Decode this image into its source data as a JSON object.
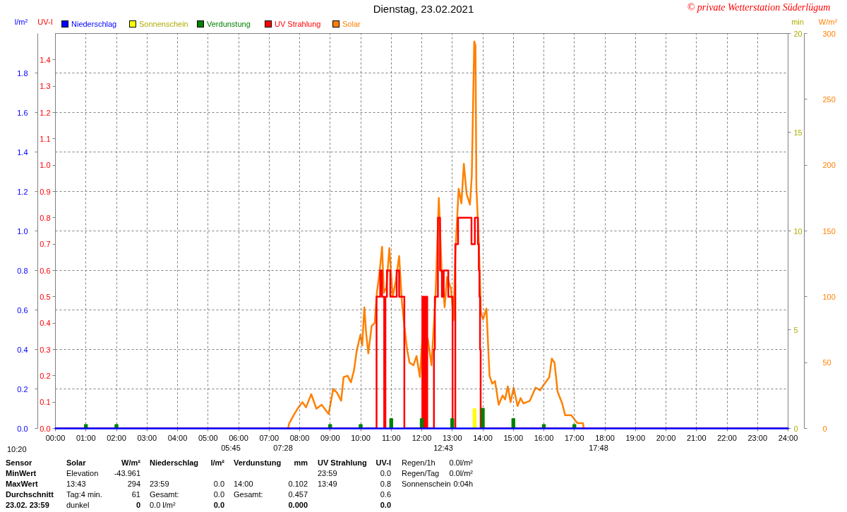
{
  "chart_data": [
    {
      "type": "line",
      "title": "Dienstag, 23.02.2021",
      "ylabel": "l/m²",
      "y2label": "UV-I",
      "xlim": [
        0,
        24
      ],
      "xticks": [
        {
          "value": 0,
          "label": "00:00"
        },
        {
          "value": 1,
          "label": "01:00"
        },
        {
          "value": 2,
          "label": "02:00"
        },
        {
          "value": 3,
          "label": "03:00"
        },
        {
          "value": 4,
          "label": "04:00"
        },
        {
          "value": 5,
          "label": "05:00"
        },
        {
          "value": 6,
          "label": "06:00"
        },
        {
          "value": 7,
          "label": "07:00"
        },
        {
          "value": 8,
          "label": "08:00"
        },
        {
          "value": 9,
          "label": "09:00"
        },
        {
          "value": 10,
          "label": "10:00"
        },
        {
          "value": 11,
          "label": "11:00"
        },
        {
          "value": 12,
          "label": "12:00"
        },
        {
          "value": 13,
          "label": "13:00"
        },
        {
          "value": 14,
          "label": "14:00"
        },
        {
          "value": 15,
          "label": "15:00"
        },
        {
          "value": 16,
          "label": "16:00"
        },
        {
          "value": 17,
          "label": "17:00"
        },
        {
          "value": 18,
          "label": "18:00"
        },
        {
          "value": 19,
          "label": "19:00"
        },
        {
          "value": 20,
          "label": "20:00"
        },
        {
          "value": 21,
          "label": "21:00"
        },
        {
          "value": 22,
          "label": "22:00"
        },
        {
          "value": 23,
          "label": "23:00"
        },
        {
          "value": 24,
          "label": "24:00"
        }
      ],
      "ylim": [
        0,
        2
      ],
      "yticks": [
        {
          "value": 0,
          "label": "0.0"
        },
        0.2,
        0.4,
        0.6,
        0.8,
        {
          "value": 1,
          "label": "1.0"
        },
        1.2,
        1.4,
        1.6,
        1.8
      ],
      "y2lim": [
        0,
        1.5
      ],
      "y2ticks": [
        {
          "value": 0,
          "label": "0.0"
        },
        0.1,
        0.2,
        0.3,
        0.4,
        0.5,
        0.6,
        0.7,
        0.8,
        0.9,
        {
          "value": 1,
          "label": "1.0"
        },
        1.1,
        1.2,
        1.3,
        1.4
      ],
      "grid": true,
      "legend": "top left",
      "series": [
        {
          "name": "Niederschlag",
          "color": "#0000ff",
          "x": [
            0,
            1,
            2,
            3,
            4,
            5,
            6,
            7,
            8,
            9,
            10,
            11,
            12,
            13,
            14,
            15,
            16,
            17,
            18,
            19,
            20,
            21,
            22,
            23,
            24
          ],
          "values": [
            0,
            0,
            0,
            0,
            0,
            0,
            0,
            0,
            0,
            0,
            0,
            0,
            0,
            0,
            0,
            0,
            0,
            0,
            0,
            0,
            0,
            0,
            0,
            0,
            0
          ]
        },
        {
          "name": "Verdunstung",
          "type": "bar",
          "color": "#008000",
          "x": [
            1,
            2,
            9,
            10,
            11,
            12,
            13,
            14,
            15,
            16,
            17
          ],
          "values": [
            0.02,
            0.02,
            0.02,
            0.02,
            0.05,
            0.05,
            0.05,
            0.102,
            0.05,
            0.02,
            0.02
          ]
        },
        {
          "name": "UV Strahlung",
          "type": "step",
          "color": "#ff0000",
          "axis": "y2",
          "x": [
            0,
            10.52,
            10.64,
            10.7,
            10.77,
            10.81,
            10.86,
            10.97,
            11.18,
            11.26,
            11.43,
            12.02,
            12.05,
            12.08,
            12.11,
            12.14,
            12.18,
            12.4,
            12.43,
            12.53,
            12.6,
            12.66,
            12.72,
            12.87,
            13.01,
            13.1,
            13.19,
            13.63,
            13.74,
            13.84,
            13.87,
            13.89,
            13.91,
            13.93,
            24
          ],
          "values": [
            0,
            0.5,
            0.6,
            0.5,
            0,
            0.5,
            0.6,
            0.5,
            0.6,
            0.5,
            0,
            0.5,
            0,
            0.5,
            0,
            0.5,
            0,
            0.3,
            0.5,
            0.8,
            0.6,
            0.5,
            0.6,
            0.5,
            0,
            0.7,
            0.8,
            0.7,
            0.8,
            0.7,
            0.6,
            0.5,
            0.3,
            0,
            0
          ]
        }
      ],
      "annotations": [
        "© private Wetterstation Süderlügum",
        "10:20",
        {
          "text": "05:45",
          "x": 5.75,
          "y": 0
        },
        {
          "text": "07:28",
          "x": 7.4667,
          "y": 0
        },
        {
          "text": "12:43",
          "x": 12.7167,
          "y": 0
        },
        {
          "text": "17:48",
          "x": 17.8,
          "y": 0
        },
        "Sensor",
        "Solar",
        "W/m²",
        "Niederschlag",
        "l/m²",
        "Verdunstung",
        "mm",
        "UV Strahlung",
        "UV-I",
        "Regen/1h",
        "0.0l/m²",
        "MinWert",
        "Elevation",
        "-43.961",
        "23:59",
        "0.0",
        "Regen/Tag",
        "0.0l/m²",
        "MaxWert",
        "13:43",
        "294",
        "23:59",
        "0.0",
        "14:00",
        "0.102",
        "13:49",
        "0.8",
        "Sonnenschein",
        "0:04h",
        "Durchschnitt",
        "Tag:4 min.",
        "61",
        "Gesamt:",
        "0.0",
        "Gesamt:",
        "0.457",
        "0.6",
        "23.02. 23:59",
        "dunkel",
        "0",
        "0.0 l/m²",
        "0.0",
        "0.000",
        "0.0"
      ]
    },
    {
      "type": "line",
      "ylabel": "min",
      "y2label": "W/m²",
      "xlim": [
        0,
        24
      ],
      "tick_labels": "y",
      "ylim": [
        0,
        20
      ],
      "yticks": [
        0,
        5,
        10,
        15,
        20
      ],
      "y2lim": [
        0,
        300
      ],
      "y2ticks": [
        0,
        50,
        100,
        150,
        200,
        250,
        300
      ],
      "legend": "top left",
      "series": [
        {
          "name": "Sonnenschein",
          "type": "bar",
          "color": "#ffff00",
          "x": [
            13.73
          ],
          "values": [
            1
          ]
        },
        {
          "name": "Solar",
          "color": "#ff8000",
          "axis": "y2",
          "x": [
            7.62,
            7.66,
            7.83,
            7.96,
            8.09,
            8.21,
            8.38,
            8.55,
            8.72,
            8.95,
            9.1,
            9.23,
            9.36,
            9.44,
            9.57,
            9.68,
            9.78,
            9.87,
            9.99,
            10.05,
            10.12,
            10.18,
            10.25,
            10.36,
            10.46,
            10.53,
            10.62,
            10.7,
            10.76,
            10.84,
            10.94,
            11.05,
            11.15,
            11.26,
            11.35,
            11.43,
            11.52,
            11.6,
            11.73,
            11.83,
            11.94,
            12.03,
            12.11,
            12.2,
            12.32,
            12.45,
            12.56,
            12.65,
            12.75,
            12.83,
            12.96,
            13.04,
            13.1,
            13.21,
            13.3,
            13.38,
            13.47,
            13.58,
            13.64,
            13.72,
            13.76,
            13.79,
            13.87,
            13.94,
            14.01,
            14.12,
            14.22,
            14.31,
            14.4,
            14.52,
            14.65,
            14.73,
            14.82,
            14.91,
            15.01,
            15.14,
            15.24,
            15.33,
            15.54,
            15.73,
            15.88,
            15.99,
            16.09,
            16.18,
            16.26,
            16.35,
            16.45,
            16.6,
            16.7,
            16.9,
            17.03,
            17.11,
            17.28,
            17.31
          ],
          "values": [
            0,
            4,
            11,
            16,
            20,
            16,
            26,
            15,
            18,
            11,
            30,
            27,
            21,
            39,
            40,
            35,
            44,
            59,
            71,
            63,
            92,
            72,
            57,
            78,
            80,
            103,
            119,
            138,
            103,
            107,
            137,
            100,
            112,
            131,
            96,
            78,
            60,
            50,
            48,
            55,
            39,
            72,
            50,
            68,
            48,
            100,
            175,
            121,
            92,
            115,
            106,
            82,
            133,
            182,
            171,
            201,
            178,
            170,
            192,
            294,
            291,
            184,
            141,
            88,
            83,
            91,
            40,
            34,
            36,
            18,
            25,
            22,
            32,
            20,
            31,
            17,
            23,
            19,
            21,
            31,
            29,
            33,
            36,
            39,
            53,
            50,
            28,
            19,
            10,
            10,
            6,
            4,
            4,
            0
          ]
        }
      ]
    }
  ]
}
